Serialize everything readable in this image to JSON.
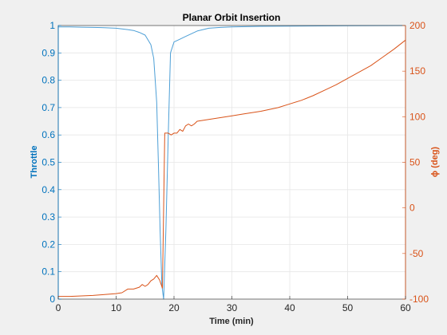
{
  "chart_data": {
    "type": "line",
    "title": "Planar Orbit Insertion",
    "xlabel": "Time (min)",
    "ylabel_left": "Throttle",
    "ylabel_right": "ϕ (deg)",
    "xlim": [
      0,
      60
    ],
    "ylim_left": [
      0,
      1
    ],
    "ylim_right": [
      -100,
      200
    ],
    "x_ticks": [
      0,
      10,
      20,
      30,
      40,
      50,
      60
    ],
    "y_left_ticks": [
      0,
      0.1,
      0.2,
      0.3,
      0.4,
      0.5,
      0.6,
      0.7,
      0.8,
      0.9,
      1
    ],
    "y_right_ticks": [
      -100,
      -50,
      0,
      50,
      100,
      150,
      200
    ],
    "grid": true,
    "colors": {
      "left": "#0072BD",
      "right": "#D95319",
      "series_left": "#4D9FD6"
    },
    "series": [
      {
        "axis": "left",
        "values_xy": [
          [
            0,
            0.995
          ],
          [
            2,
            0.995
          ],
          [
            4,
            0.994
          ],
          [
            6,
            0.993
          ],
          [
            8,
            0.992
          ],
          [
            10,
            0.99
          ],
          [
            12,
            0.985
          ],
          [
            13,
            0.982
          ],
          [
            14,
            0.975
          ],
          [
            15,
            0.965
          ],
          [
            16,
            0.93
          ],
          [
            16.5,
            0.88
          ],
          [
            17,
            0.72
          ],
          [
            17.3,
            0.5
          ],
          [
            17.6,
            0.25
          ],
          [
            17.9,
            0.05
          ],
          [
            18.2,
            0.0
          ],
          [
            18.6,
            0.25
          ],
          [
            19,
            0.6
          ],
          [
            19.4,
            0.9
          ],
          [
            20,
            0.94
          ],
          [
            20.5,
            0.945
          ],
          [
            21,
            0.95
          ],
          [
            22,
            0.96
          ],
          [
            23,
            0.97
          ],
          [
            24,
            0.98
          ],
          [
            25,
            0.985
          ],
          [
            26,
            0.99
          ],
          [
            28,
            0.993
          ],
          [
            30,
            0.995
          ],
          [
            35,
            0.997
          ],
          [
            40,
            0.998
          ],
          [
            50,
            0.999
          ],
          [
            60,
            1.0
          ]
        ]
      },
      {
        "axis": "right",
        "values_xy": [
          [
            0,
            -97
          ],
          [
            2,
            -97
          ],
          [
            4,
            -96.5
          ],
          [
            6,
            -96
          ],
          [
            8,
            -95
          ],
          [
            10,
            -94
          ],
          [
            11,
            -93
          ],
          [
            12,
            -89
          ],
          [
            13,
            -89
          ],
          [
            14,
            -87
          ],
          [
            14.5,
            -84
          ],
          [
            15,
            -86
          ],
          [
            15.5,
            -84
          ],
          [
            16,
            -80
          ],
          [
            16.5,
            -78
          ],
          [
            17,
            -74
          ],
          [
            17.5,
            -79
          ],
          [
            18,
            -88
          ],
          [
            18.4,
            82
          ],
          [
            19,
            82
          ],
          [
            19.5,
            80
          ],
          [
            20,
            82
          ],
          [
            20.5,
            82
          ],
          [
            21,
            86
          ],
          [
            21.5,
            84
          ],
          [
            22,
            90
          ],
          [
            22.5,
            92
          ],
          [
            23,
            90
          ],
          [
            23.5,
            92
          ],
          [
            24,
            95
          ],
          [
            25,
            96
          ],
          [
            26,
            97
          ],
          [
            28,
            99
          ],
          [
            30,
            101
          ],
          [
            32,
            103
          ],
          [
            35,
            106
          ],
          [
            38,
            110
          ],
          [
            40,
            114
          ],
          [
            42,
            118
          ],
          [
            44,
            123
          ],
          [
            46,
            129
          ],
          [
            48,
            135
          ],
          [
            50,
            142
          ],
          [
            52,
            149
          ],
          [
            54,
            156
          ],
          [
            56,
            165
          ],
          [
            58,
            174
          ],
          [
            60,
            184
          ]
        ]
      }
    ]
  }
}
